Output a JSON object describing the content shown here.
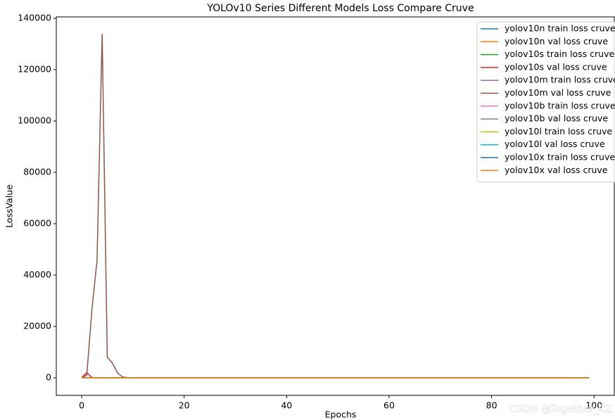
{
  "chart_data": {
    "type": "line",
    "title": "YOLOv10 Series Different Models Loss Compare Cruve",
    "xlabel": "Epochs",
    "ylabel": "LossValue",
    "watermark": "CSDN @Together_CZ",
    "x": [
      0,
      1,
      2,
      3,
      4,
      5,
      6,
      7,
      8,
      9,
      10,
      20,
      30,
      40,
      50,
      60,
      70,
      80,
      90,
      99
    ],
    "xlim": [
      -4.95,
      103.95
    ],
    "xticks": [
      0,
      20,
      40,
      60,
      80,
      100
    ],
    "ylim": [
      -6850,
      140550
    ],
    "yticks": [
      0,
      20000,
      40000,
      60000,
      80000,
      100000,
      120000,
      140000
    ],
    "legend": "upper right",
    "series": [
      {
        "name": "yolov10n train loss cruve",
        "color": "#1f77b4",
        "values": [
          9.1,
          7.2,
          6.5,
          6.1,
          5.8,
          5.6,
          5.4,
          5.3,
          5.2,
          5.1,
          5.0,
          4.5,
          4.2,
          4.0,
          3.8,
          3.6,
          3.5,
          3.4,
          3.3,
          3.2
        ]
      },
      {
        "name": "yolov10n val loss cruve",
        "color": "#ff7f0e",
        "values": [
          12,
          30,
          25,
          9,
          8,
          7.5,
          7,
          6.8,
          6.6,
          6.5,
          6.4,
          5.9,
          5.6,
          5.4,
          5.3,
          5.2,
          5.1,
          5.0,
          5.0,
          4.9
        ]
      },
      {
        "name": "yolov10s train loss cruve",
        "color": "#2ca02c",
        "values": [
          8.8,
          7.0,
          6.3,
          5.9,
          5.6,
          5.4,
          5.2,
          5.1,
          5.0,
          4.9,
          4.8,
          4.3,
          4.0,
          3.8,
          3.6,
          3.4,
          3.3,
          3.2,
          3.1,
          3.0
        ]
      },
      {
        "name": "yolov10s val loss cruve",
        "color": "#d62728",
        "values": [
          20,
          2000,
          100,
          40,
          15,
          9,
          8,
          7.5,
          7,
          6.8,
          6.6,
          6.0,
          5.7,
          5.5,
          5.4,
          5.3,
          5.2,
          5.1,
          5.0,
          5.0
        ]
      },
      {
        "name": "yolov10m train loss cruve",
        "color": "#9467bd",
        "values": [
          8.6,
          6.8,
          6.1,
          5.7,
          5.4,
          5.2,
          5.0,
          4.9,
          4.8,
          4.7,
          4.6,
          4.1,
          3.8,
          3.6,
          3.4,
          3.2,
          3.1,
          3.0,
          2.9,
          2.8
        ]
      },
      {
        "name": "yolov10m val loss cruve",
        "color": "#8c564b",
        "values": [
          50,
          1000,
          26500,
          45700,
          134000,
          8000,
          5700,
          1900,
          300,
          60,
          20,
          8,
          6.5,
          6.0,
          5.7,
          5.5,
          5.3,
          5.2,
          5.1,
          5.0
        ]
      },
      {
        "name": "yolov10b train loss cruve",
        "color": "#e377c2",
        "values": [
          8.5,
          6.7,
          6.0,
          5.6,
          5.3,
          5.1,
          4.9,
          4.8,
          4.7,
          4.6,
          4.5,
          4.0,
          3.7,
          3.5,
          3.3,
          3.1,
          3.0,
          2.9,
          2.8,
          2.7
        ]
      },
      {
        "name": "yolov10b val loss cruve",
        "color": "#7f7f7f",
        "values": [
          15,
          40,
          30,
          12,
          9,
          8,
          7.5,
          7,
          6.8,
          6.6,
          6.4,
          5.9,
          5.6,
          5.4,
          5.3,
          5.2,
          5.1,
          5.0,
          4.9,
          4.9
        ]
      },
      {
        "name": "yolov10l train loss cruve",
        "color": "#bcbd22",
        "values": [
          8.4,
          6.6,
          5.9,
          5.5,
          5.2,
          5.0,
          4.8,
          4.7,
          4.6,
          4.5,
          4.4,
          3.9,
          3.6,
          3.4,
          3.2,
          3.0,
          2.9,
          2.8,
          2.7,
          2.6
        ]
      },
      {
        "name": "yolov10l val loss cruve",
        "color": "#17becf",
        "values": [
          14,
          35,
          28,
          11,
          9,
          8,
          7.4,
          7,
          6.7,
          6.5,
          6.3,
          5.8,
          5.5,
          5.3,
          5.2,
          5.1,
          5.0,
          4.9,
          4.8,
          4.8
        ]
      },
      {
        "name": "yolov10x train loss cruve",
        "color": "#1f77b4",
        "values": [
          8.3,
          6.5,
          5.8,
          5.4,
          5.1,
          4.9,
          4.7,
          4.6,
          4.5,
          4.4,
          4.3,
          3.8,
          3.5,
          3.3,
          3.1,
          2.9,
          2.8,
          2.7,
          2.6,
          2.5
        ]
      },
      {
        "name": "yolov10x val loss cruve",
        "color": "#ff7f0e",
        "values": [
          13,
          33,
          26,
          10,
          8.5,
          7.8,
          7.2,
          6.9,
          6.6,
          6.4,
          6.2,
          5.7,
          5.4,
          5.2,
          5.1,
          5.0,
          4.9,
          4.8,
          4.7,
          4.7
        ]
      }
    ]
  }
}
